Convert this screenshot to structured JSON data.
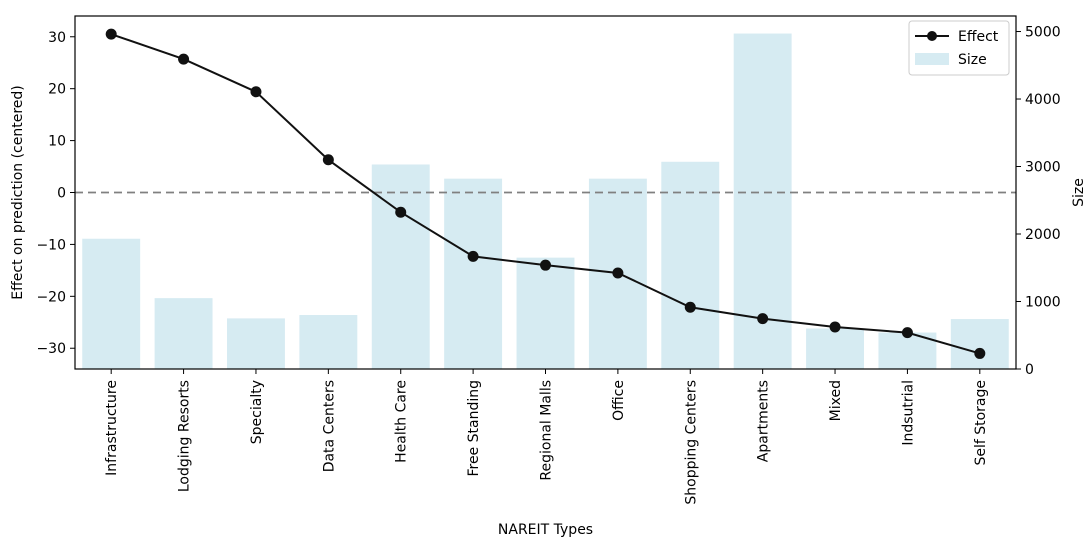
{
  "chart_data": {
    "type": "bar+line",
    "xlabel": "NAREIT Types",
    "ylabel_left": "Effect on prediction (centered)",
    "ylabel_right": "Size",
    "categories": [
      "Infrastructure",
      "Lodging Resorts",
      "Specialty",
      "Data Centers",
      "Health Care",
      "Free Standing",
      "Regional Malls",
      "Office",
      "Shopping Centers",
      "Apartments",
      "Mixed",
      "Indsutrial",
      "Self Storage"
    ],
    "series": [
      {
        "name": "Effect",
        "type": "line",
        "axis": "left",
        "values": [
          30.5,
          25.7,
          19.4,
          6.3,
          -3.8,
          -12.3,
          -14.0,
          -15.5,
          -22.1,
          -24.3,
          -25.9,
          -27.0,
          -31.0
        ]
      },
      {
        "name": "Size",
        "type": "bar",
        "axis": "right",
        "values": [
          1930,
          1050,
          750,
          800,
          3030,
          2820,
          1650,
          2820,
          3070,
          4970,
          600,
          540,
          740
        ]
      }
    ],
    "ylim_left": [
      -34,
      34
    ],
    "yticks_left": [
      -30,
      -20,
      -10,
      0,
      10,
      20,
      30
    ],
    "ylim_right": [
      0,
      5230
    ],
    "yticks_right": [
      0,
      1000,
      2000,
      3000,
      4000,
      5000
    ],
    "reference_line": {
      "y": 0,
      "style": "dashed"
    },
    "legend_position": "top-right",
    "grid": false,
    "colors": {
      "line": "#111111",
      "bar": "#add8e6",
      "reference": "#808080"
    }
  }
}
